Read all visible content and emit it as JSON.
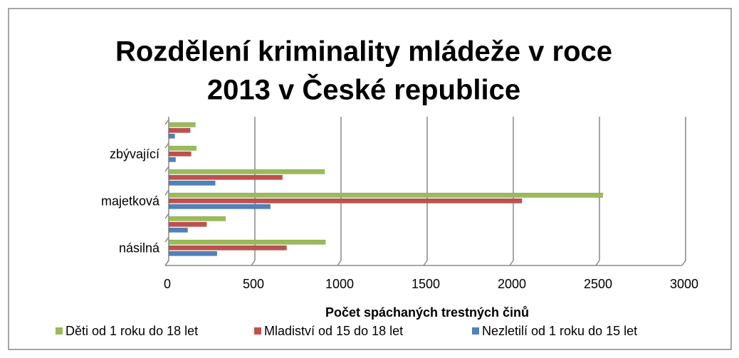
{
  "chart_data": {
    "type": "bar",
    "orientation": "horizontal",
    "title": [
      "Rozdělení kriminality mládeže v roce",
      "2013 v České republice"
    ],
    "xlabel": "Počet spáchaných trestných činů",
    "categories": [
      "násilná",
      null,
      "majetková",
      null,
      "zbývající",
      null
    ],
    "series": [
      {
        "name": "Děti od 1 roku do 18 let",
        "color": "#9bbb59",
        "values": [
          910,
          330,
          2520,
          905,
          160,
          155
        ]
      },
      {
        "name": "Mladiství od 15 do 18 let",
        "color": "#c0504d",
        "values": [
          684,
          220,
          2050,
          660,
          130,
          125
        ]
      },
      {
        "name": "Nezletilí od 1 roku do 15 let",
        "color": "#4f81bd",
        "values": [
          280,
          110,
          590,
          270,
          40,
          35
        ]
      }
    ],
    "xlim": [
      0,
      3000
    ],
    "xticks": [
      0,
      500,
      1000,
      1500,
      2000,
      2500,
      3000
    ],
    "grid": true,
    "legend": "bottom"
  }
}
